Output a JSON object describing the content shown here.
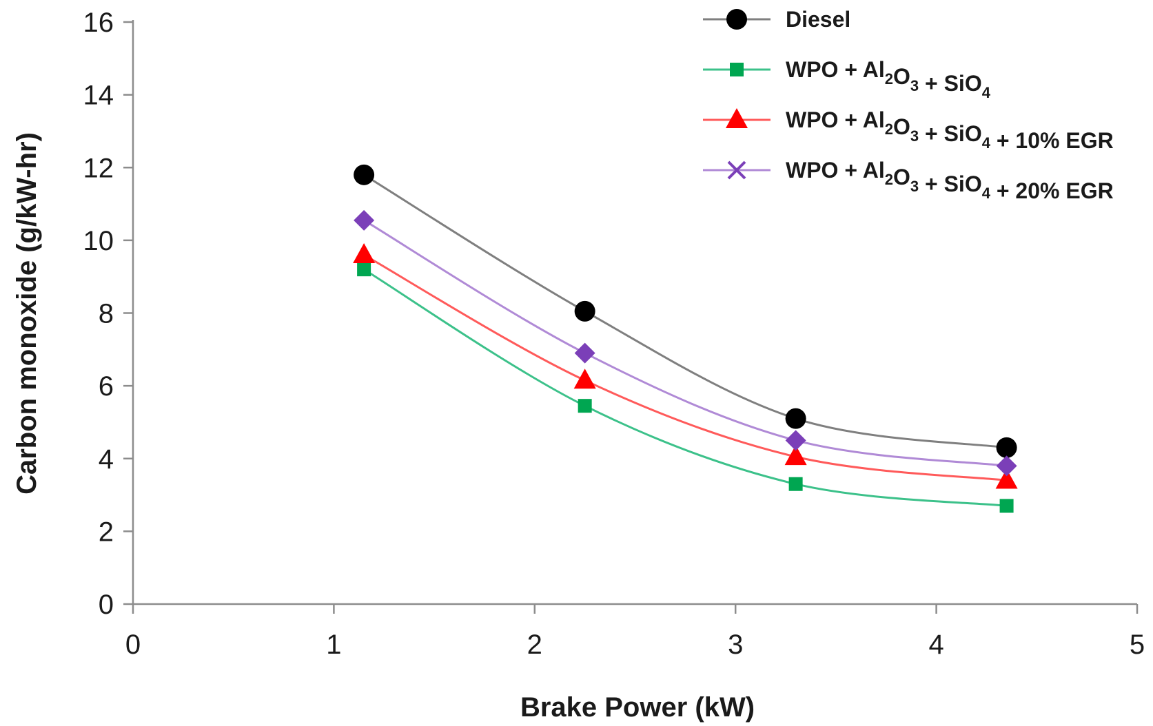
{
  "chart_data": {
    "type": "line",
    "title": "",
    "xlabel": "Brake Power (kW)",
    "ylabel": "Carbon monoxide (g/kW-hr)",
    "xlim": [
      0,
      5
    ],
    "ylim": [
      0,
      16
    ],
    "x_ticks": [
      "0",
      "1",
      "2",
      "3",
      "4",
      "5"
    ],
    "y_ticks": [
      "0",
      "2",
      "4",
      "6",
      "8",
      "10",
      "12",
      "14",
      "16"
    ],
    "x": [
      1.15,
      2.25,
      3.3,
      4.35
    ],
    "grid": false,
    "legend_position": "top-right",
    "series": [
      {
        "name": "Diesel",
        "legend": {
          "base": "Diesel"
        },
        "marker": "circle",
        "color": "#7f7f7f",
        "marker_color": "#000000",
        "values": [
          11.8,
          8.05,
          5.1,
          4.3
        ]
      },
      {
        "name": "WPO + Al2O3 + SiO4",
        "legend": {
          "a": "WPO + Al",
          "s1": "2",
          "b": "O",
          "s2": "3",
          "c": " + SiO",
          "s3": "4",
          "d": ""
        },
        "marker": "square",
        "color": "#3cc18a",
        "marker_color": "#00a651",
        "values": [
          9.2,
          5.45,
          3.3,
          2.7
        ]
      },
      {
        "name": "WPO + Al2O3 + SiO4 + 10% EGR",
        "legend": {
          "a": "WPO + Al",
          "s1": "2",
          "b": "O",
          "s2": "3",
          "c": " + SiO",
          "s3": "4",
          "d": " + 10% EGR"
        },
        "marker": "triangle",
        "color": "#ff5a5a",
        "marker_color": "#ff0000",
        "values": [
          9.6,
          6.15,
          4.05,
          3.4
        ]
      },
      {
        "name": "WPO + Al2O3 + SiO4 + 20% EGR",
        "legend": {
          "a": "WPO + Al",
          "s1": "2",
          "b": "O",
          "s2": "3",
          "c": " + SiO",
          "s3": "4",
          "d": " + 20% EGR"
        },
        "marker": "diamond",
        "legend_marker": "cross",
        "color": "#b08ad6",
        "marker_color": "#7b3fb8",
        "values": [
          10.55,
          6.9,
          4.5,
          3.8
        ]
      }
    ]
  }
}
